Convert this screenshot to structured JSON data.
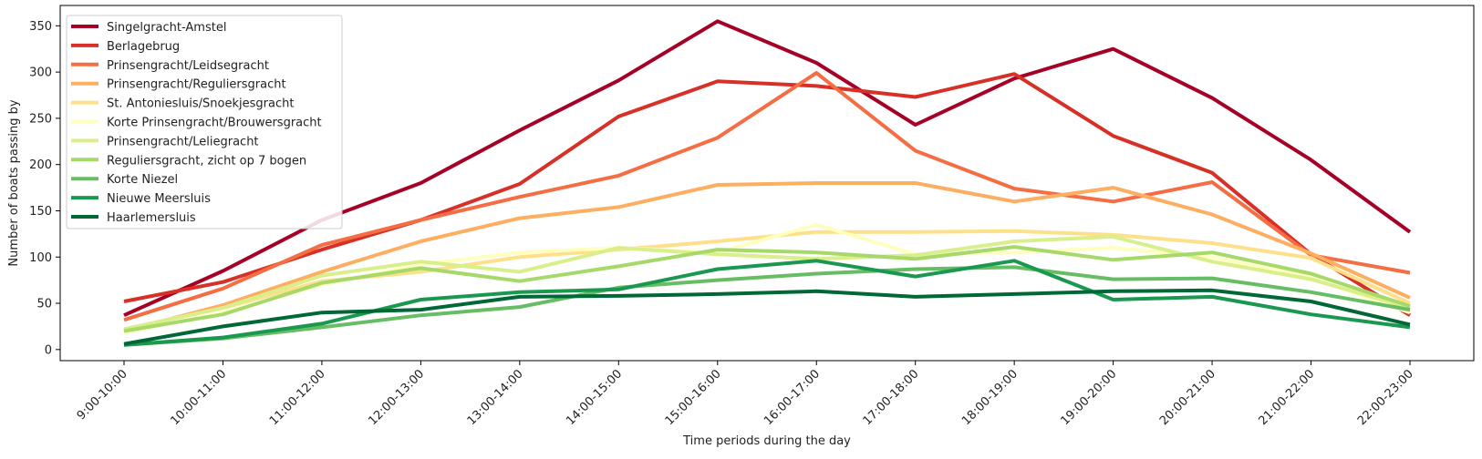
{
  "chart_data": {
    "type": "line",
    "title": "",
    "xlabel": "Time periods during the day",
    "ylabel": "Number of boats passing by",
    "ylim": [
      -12,
      372
    ],
    "yticks": [
      0,
      50,
      100,
      150,
      200,
      250,
      300,
      350
    ],
    "grid": false,
    "legend_position": "top-left",
    "categories": [
      "9:00-10:00",
      "10:00-11:00",
      "11:00-12:00",
      "12:00-13:00",
      "13:00-14:00",
      "14:00-15:00",
      "15:00-16:00",
      "16:00-17:00",
      "17:00-18:00",
      "18:00-19:00",
      "19:00-20:00",
      "20:00-21:00",
      "21:00-22:00",
      "22:00-23:00"
    ],
    "series": [
      {
        "name": "Singelgracht-Amstel",
        "color": "#a50026",
        "values": [
          37,
          85,
          140,
          180,
          237,
          291,
          355,
          310,
          243,
          293,
          325,
          272,
          205,
          127
        ]
      },
      {
        "name": "Berlagebrug",
        "color": "#d73027",
        "values": [
          52,
          73,
          108,
          140,
          179,
          252,
          290,
          285,
          273,
          298,
          231,
          191,
          103,
          37
        ]
      },
      {
        "name": "Prinsengracht/Leidsegracht",
        "color": "#f46d43",
        "values": [
          32,
          66,
          113,
          140,
          165,
          188,
          229,
          299,
          215,
          174,
          160,
          181,
          102,
          83
        ]
      },
      {
        "name": "Prinsengracht/Reguliersgracht",
        "color": "#fdae61",
        "values": [
          20,
          48,
          84,
          117,
          142,
          154,
          178,
          180,
          180,
          160,
          175,
          146,
          104,
          56
        ]
      },
      {
        "name": "St. Antoniesluis/Snoekjesgracht",
        "color": "#fee08b",
        "values": [
          22,
          45,
          74,
          84,
          100,
          108,
          117,
          127,
          127,
          128,
          124,
          115,
          99,
          50
        ]
      },
      {
        "name": "Korte Prinsengracht/Brouwersgracht",
        "color": "#ffffbf",
        "values": [
          18,
          40,
          70,
          92,
          105,
          110,
          105,
          135,
          103,
          105,
          110,
          100,
          78,
          40
        ]
      },
      {
        "name": "Prinsengracht/Leliegracht",
        "color": "#d9ef8b",
        "values": [
          22,
          45,
          80,
          95,
          84,
          110,
          103,
          98,
          102,
          117,
          122,
          95,
          76,
          45
        ]
      },
      {
        "name": "Reguliersgracht, zicht op 7 bogen",
        "color": "#a6d96a",
        "values": [
          20,
          38,
          72,
          88,
          74,
          90,
          108,
          105,
          98,
          111,
          97,
          105,
          82,
          47
        ]
      },
      {
        "name": "Korte Niezel",
        "color": "#66bd63",
        "values": [
          5,
          12,
          24,
          37,
          46,
          67,
          75,
          82,
          87,
          89,
          76,
          77,
          62,
          43
        ]
      },
      {
        "name": "Nieuwe Meersluis",
        "color": "#1a9850",
        "values": [
          5,
          13,
          28,
          54,
          62,
          65,
          87,
          96,
          79,
          96,
          54,
          57,
          38,
          24
        ]
      },
      {
        "name": "Haarlemersluis",
        "color": "#006837",
        "values": [
          6,
          25,
          40,
          43,
          57,
          58,
          60,
          63,
          57,
          60,
          63,
          64,
          52,
          27
        ]
      }
    ]
  }
}
